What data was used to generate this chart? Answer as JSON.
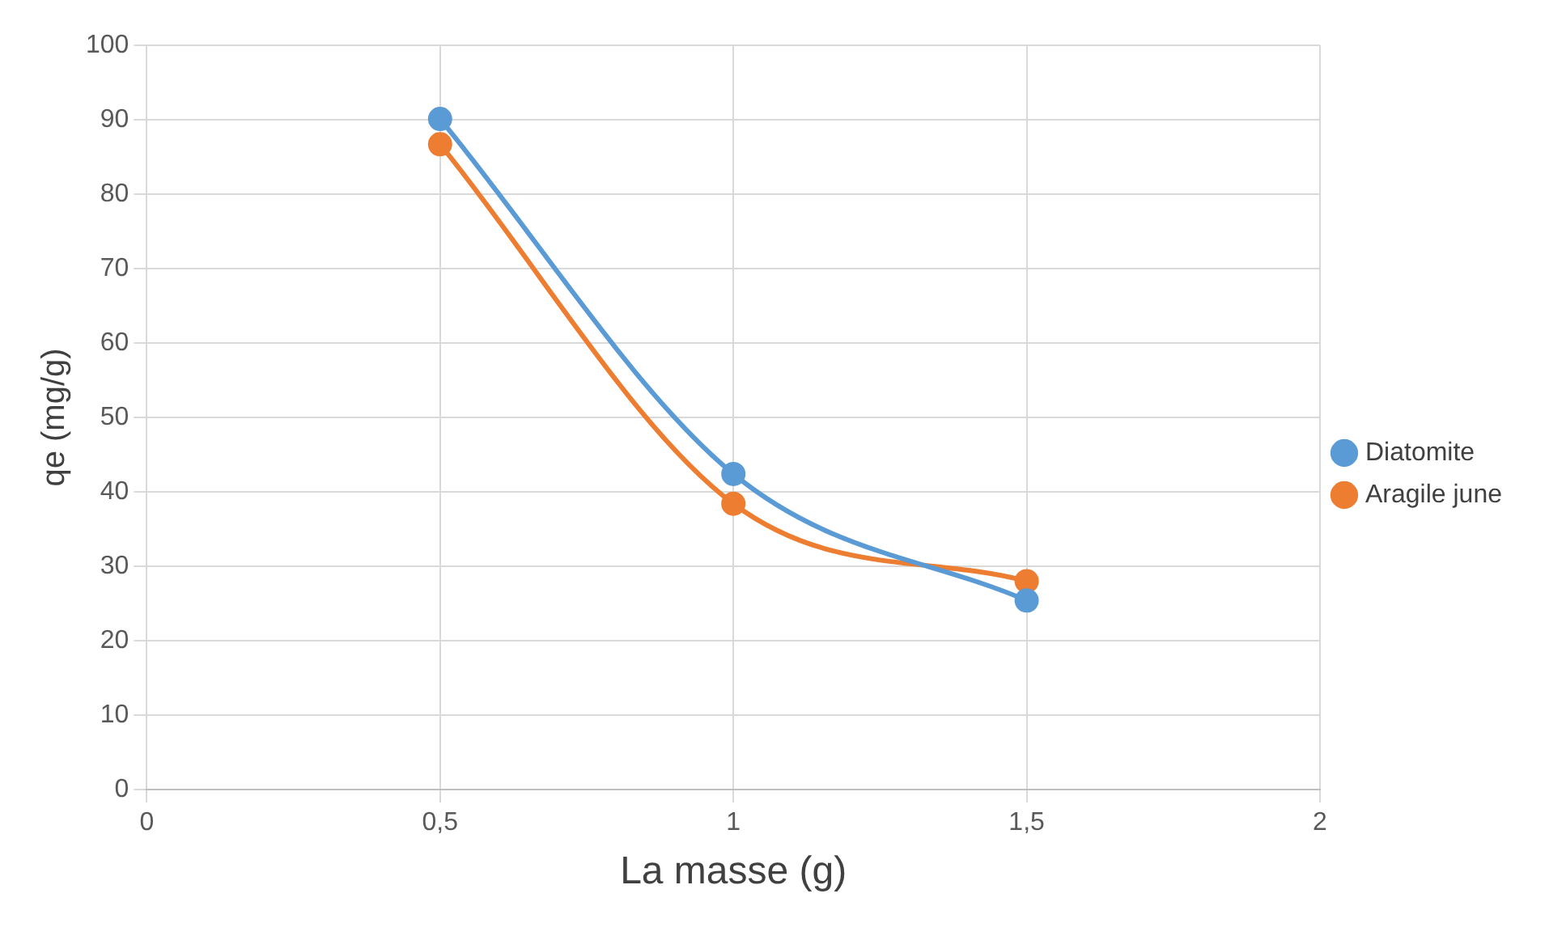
{
  "chart_data": {
    "type": "line",
    "xlabel": "La masse (g)",
    "ylabel": "qe (mg/g)",
    "xlim": [
      0,
      2
    ],
    "xticks": [
      0,
      {
        "value": 0.5,
        "label": "0,5"
      },
      1,
      {
        "value": 1.5,
        "label": "1,5"
      },
      2
    ],
    "ylim": [
      0,
      100
    ],
    "yticks": [
      0,
      10,
      20,
      30,
      40,
      50,
      60,
      70,
      80,
      90,
      100
    ],
    "grid": true,
    "legend": "right",
    "marker": "circle",
    "line_style": "solid",
    "series": [
      {
        "name": "Diatomite",
        "color": "#5b9bd5",
        "x": [
          0.5,
          1,
          1.5
        ],
        "values": [
          90.1,
          42.4,
          25.4
        ]
      },
      {
        "name": "Aragile june",
        "color": "#ed7d31",
        "x": [
          0.5,
          1,
          1.5
        ],
        "values": [
          86.7,
          38.4,
          28.0
        ]
      }
    ]
  }
}
